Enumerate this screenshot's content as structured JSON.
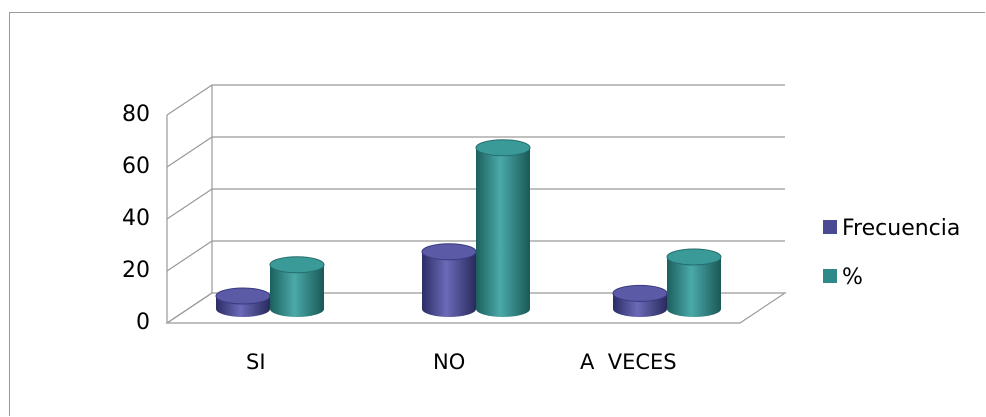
{
  "chart_data": {
    "type": "bar",
    "title": "",
    "xlabel": "",
    "ylabel": "",
    "categories": [
      "SI",
      "NO",
      "A  VECES"
    ],
    "series": [
      {
        "name": "Frecuencia",
        "values": [
          5,
          22,
          6
        ],
        "color": "#4a4a94"
      },
      {
        "name": "%",
        "values": [
          17,
          62,
          20
        ],
        "color": "#2e8a88"
      }
    ],
    "ylim": [
      0,
      80
    ],
    "yticks": [
      "0",
      "20",
      "40",
      "60",
      "80"
    ],
    "grid": true,
    "legend_position": "right",
    "style": "3d-cylinder"
  }
}
